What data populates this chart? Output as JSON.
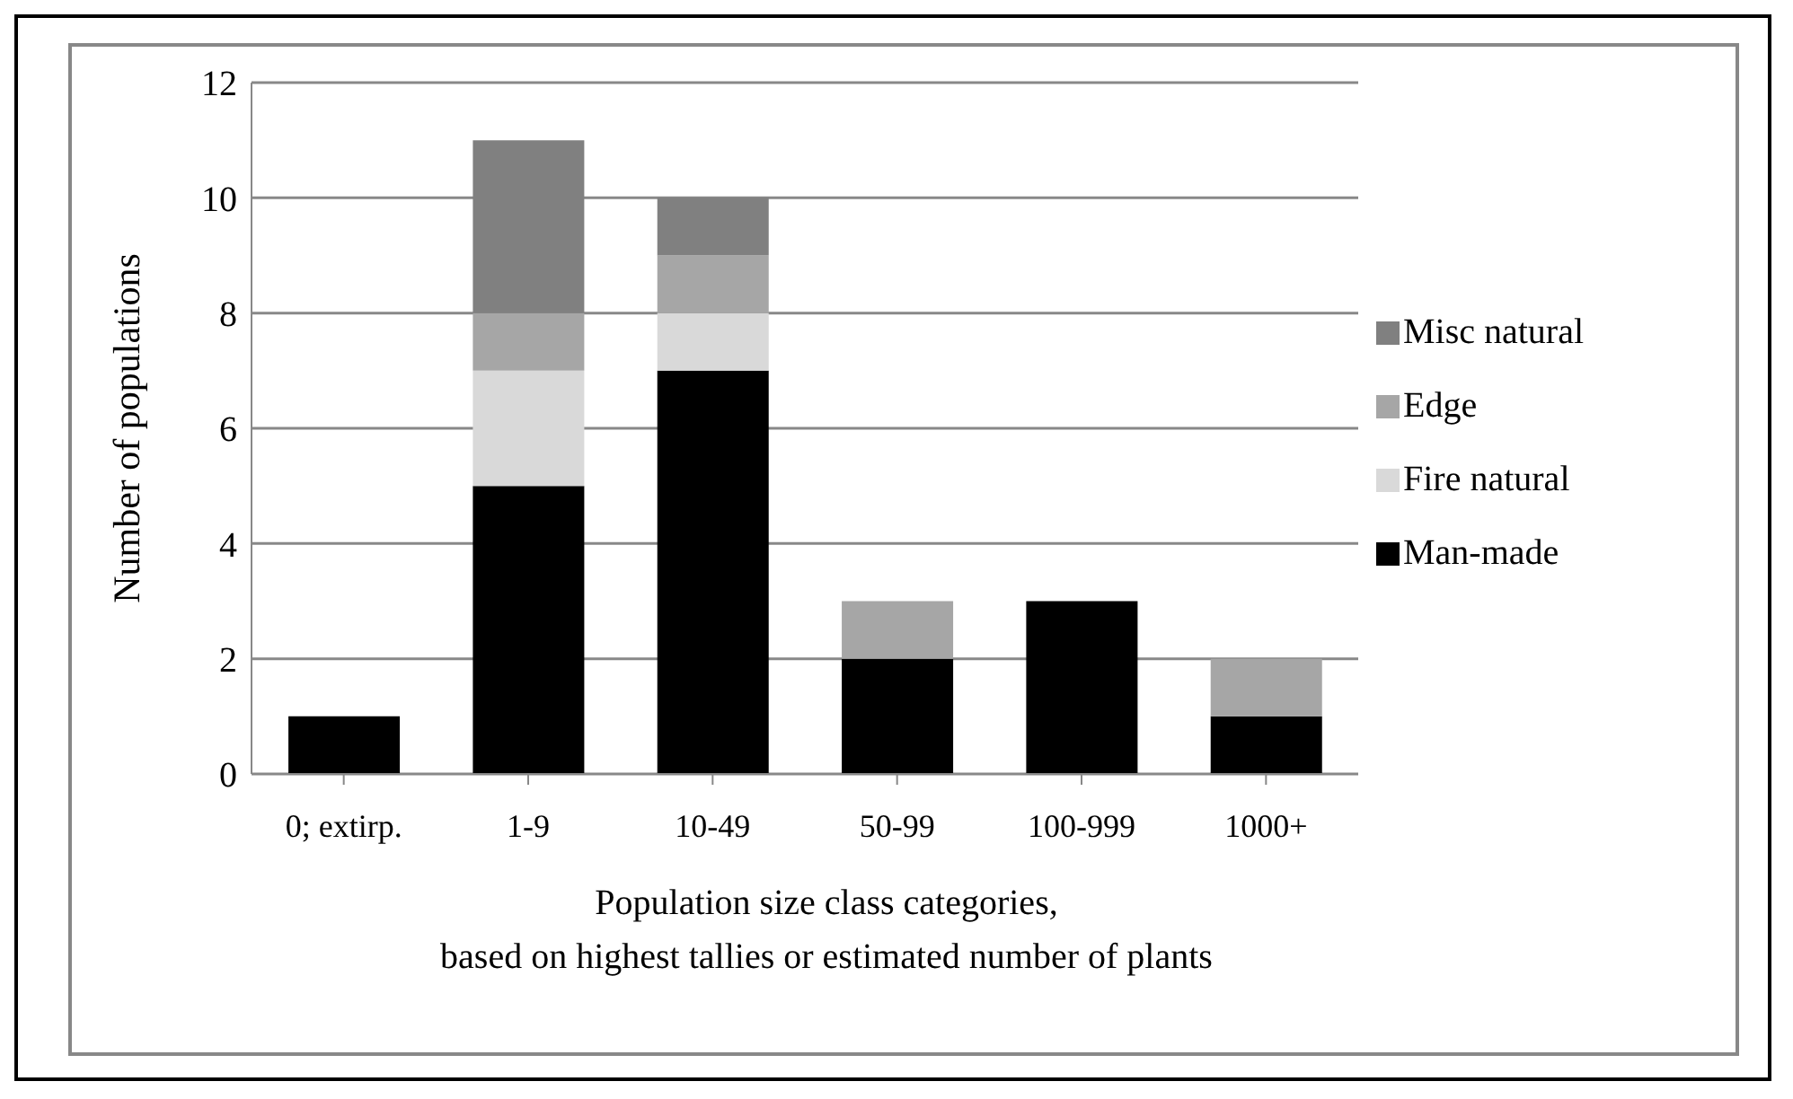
{
  "chart_data": {
    "type": "bar",
    "stacked": true,
    "xlabel": "Population size class categories,\nbased on highest tallies or estimated number of plants",
    "ylabel": "Number of populations",
    "categories": [
      "0; extirp.",
      "1-9",
      "10-49",
      "50-99",
      "100-999",
      "1000+"
    ],
    "series": [
      {
        "name": "Man-made",
        "color": "#000000",
        "values": [
          1,
          5,
          7,
          2,
          3,
          1
        ]
      },
      {
        "name": "Fire natural",
        "color": "#d9d9d9",
        "values": [
          0,
          2,
          1,
          0,
          0,
          0
        ]
      },
      {
        "name": "Edge",
        "color": "#a6a6a6",
        "values": [
          0,
          1,
          1,
          1,
          0,
          1
        ]
      },
      {
        "name": "Misc natural",
        "color": "#808080",
        "values": [
          0,
          3,
          1,
          0,
          0,
          0
        ]
      }
    ],
    "ylim": [
      0,
      12
    ],
    "yticks": [
      0,
      2,
      4,
      6,
      8,
      10,
      12
    ],
    "grid": "y",
    "legend": "right"
  }
}
